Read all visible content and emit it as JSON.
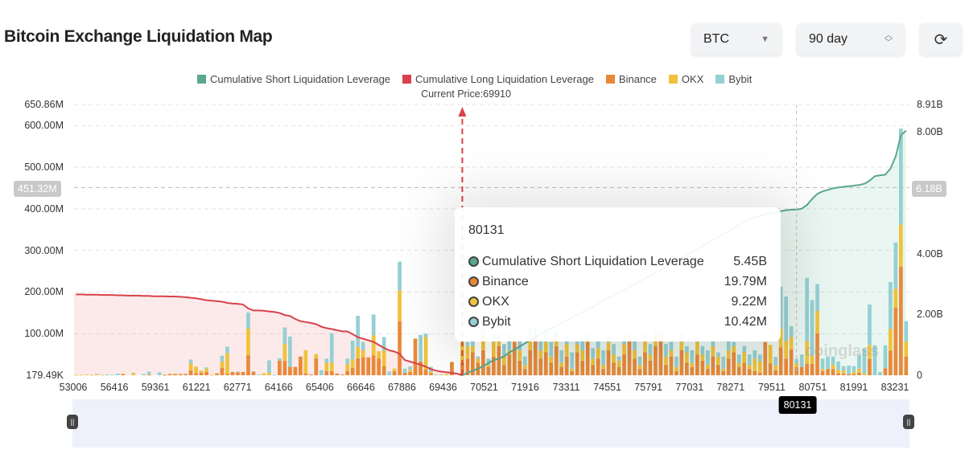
{
  "header": {
    "title": "Bitcoin Exchange Liquidation Map",
    "coin_select": "BTC",
    "period_select": "90 day",
    "refresh_icon": "refresh-icon"
  },
  "colors": {
    "short": "#5aa98a",
    "long": "#d9424a",
    "binance": "#e8893a",
    "okx": "#f0c23b",
    "bybit": "#95d0d3"
  },
  "chart_data": {
    "type": "bar",
    "stacked": true,
    "legend_position": "top",
    "legend": [
      "Cumulative Short Liquidation Leverage",
      "Cumulative Long Liquidation Leverage",
      "Binance",
      "OKX",
      "Bybit"
    ],
    "annotation": "Current Price:69910",
    "current_price": 69910,
    "grid": true,
    "x_tick_labels": [
      "53006",
      "56416",
      "59361",
      "61221",
      "62771",
      "64166",
      "65406",
      "66646",
      "67886",
      "69436",
      "70521",
      "71916",
      "73311",
      "74551",
      "75791",
      "77031",
      "78271",
      "79511",
      "80751",
      "81991",
      "83231"
    ],
    "y_left": {
      "ticks": [
        "650.86M",
        "600.00M",
        "500.00M",
        "400.00M",
        "300.00M",
        "200.00M",
        "100.00M",
        "179.49K"
      ],
      "tick_values_M": [
        650.86,
        600,
        500,
        400,
        300,
        200,
        100,
        0.17949
      ],
      "range_M": [
        0,
        650.86
      ],
      "crosshair_label": "451.32M",
      "crosshair_value_M": 451.32
    },
    "y_right": {
      "ticks": [
        "8.91B",
        "8.00B",
        "4.00B",
        "2.00B",
        "0"
      ],
      "tick_values_B": [
        8.91,
        8,
        4,
        2,
        0
      ],
      "range_B": [
        0,
        8.91
      ],
      "crosshair_label": "6.18B",
      "crosshair_value_B": 6.18
    },
    "bar_series_names": [
      "Binance",
      "OKX",
      "Bybit"
    ],
    "bars_M": [
      [
        0,
        1,
        0
      ],
      [
        0,
        1,
        0
      ],
      [
        0,
        2,
        0
      ],
      [
        0,
        1,
        0
      ],
      [
        0,
        2,
        1
      ],
      [
        0,
        1,
        0
      ],
      [
        0,
        0,
        2
      ],
      [
        0,
        0,
        1
      ],
      [
        0,
        0,
        4
      ],
      [
        3,
        1,
        0
      ],
      [
        0,
        0,
        0
      ],
      [
        0,
        5,
        1
      ],
      [
        0,
        0,
        0
      ],
      [
        0,
        0,
        3
      ],
      [
        1,
        1,
        7
      ],
      [
        0,
        0,
        0
      ],
      [
        0,
        0,
        7
      ],
      [
        1,
        1,
        0
      ],
      [
        3,
        0,
        0
      ],
      [
        3,
        1,
        0
      ],
      [
        3,
        0,
        0
      ],
      [
        3,
        0,
        0
      ],
      [
        12,
        16,
        10
      ],
      [
        5,
        16,
        0
      ],
      [
        6,
        5,
        0
      ],
      [
        8,
        8,
        3
      ],
      [
        0,
        1,
        0
      ],
      [
        4,
        1,
        0
      ],
      [
        18,
        15,
        14
      ],
      [
        3,
        50,
        16
      ],
      [
        8,
        0,
        0
      ],
      [
        7,
        0,
        2
      ],
      [
        8,
        0,
        0
      ],
      [
        48,
        64,
        39
      ],
      [
        8,
        0,
        2
      ],
      [
        0,
        0,
        2
      ],
      [
        0,
        5,
        0
      ],
      [
        0,
        6,
        30
      ],
      [
        0,
        0,
        1
      ],
      [
        35,
        0,
        6
      ],
      [
        35,
        40,
        40
      ],
      [
        20,
        0,
        73
      ],
      [
        20,
        0,
        0
      ],
      [
        45,
        0,
        0
      ],
      [
        4,
        56,
        0
      ],
      [
        2,
        0,
        0
      ],
      [
        41,
        10,
        0
      ],
      [
        0,
        0,
        12
      ],
      [
        10,
        20,
        10
      ],
      [
        10,
        20,
        71
      ],
      [
        4,
        0,
        0
      ],
      [
        2,
        0,
        0
      ],
      [
        10,
        16,
        14
      ],
      [
        18,
        20,
        45
      ],
      [
        41,
        27,
        75
      ],
      [
        43,
        17,
        20
      ],
      [
        43,
        0,
        0
      ],
      [
        48,
        48,
        50
      ],
      [
        40,
        18,
        0
      ],
      [
        22,
        37,
        33
      ],
      [
        0,
        0,
        9
      ],
      [
        10,
        6,
        0
      ],
      [
        130,
        74,
        69
      ],
      [
        6,
        0,
        10
      ],
      [
        8,
        5,
        8
      ],
      [
        88,
        0,
        0
      ],
      [
        33,
        0,
        64
      ],
      [
        14,
        78,
        8
      ],
      [
        5,
        3,
        12
      ],
      [
        0,
        0,
        2
      ],
      [
        0,
        2,
        0
      ],
      [
        0,
        3,
        0
      ],
      [
        32,
        0,
        0
      ],
      [
        0,
        0,
        0
      ],
      [
        30,
        50,
        0
      ],
      [
        40,
        30,
        10
      ],
      [
        55,
        15,
        20
      ],
      [
        30,
        10,
        5
      ],
      [
        60,
        40,
        30
      ],
      [
        20,
        5,
        15
      ],
      [
        45,
        35,
        20
      ],
      [
        70,
        20,
        10
      ],
      [
        25,
        20,
        30
      ],
      [
        50,
        10,
        40
      ],
      [
        80,
        10,
        5
      ],
      [
        35,
        25,
        25
      ],
      [
        15,
        10,
        20
      ],
      [
        60,
        30,
        20
      ],
      [
        90,
        15,
        10
      ],
      [
        40,
        20,
        25
      ],
      [
        55,
        25,
        30
      ],
      [
        30,
        15,
        35
      ],
      [
        70,
        20,
        15
      ],
      [
        20,
        10,
        30
      ],
      [
        45,
        30,
        20
      ],
      [
        10,
        5,
        40
      ],
      [
        55,
        20,
        10
      ],
      [
        35,
        25,
        30
      ],
      [
        80,
        10,
        10
      ],
      [
        25,
        15,
        25
      ],
      [
        40,
        25,
        20
      ],
      [
        15,
        10,
        35
      ],
      [
        60,
        20,
        15
      ],
      [
        30,
        20,
        25
      ],
      [
        20,
        15,
        10
      ],
      [
        50,
        25,
        20
      ],
      [
        85,
        10,
        5
      ],
      [
        40,
        20,
        30
      ],
      [
        15,
        10,
        20
      ],
      [
        55,
        30,
        15
      ],
      [
        35,
        15,
        25
      ],
      [
        70,
        25,
        10
      ],
      [
        90,
        10,
        5
      ],
      [
        25,
        20,
        30
      ],
      [
        45,
        15,
        20
      ],
      [
        10,
        10,
        25
      ],
      [
        60,
        20,
        20
      ],
      [
        30,
        25,
        15
      ],
      [
        20,
        10,
        30
      ],
      [
        50,
        30,
        10
      ],
      [
        35,
        15,
        20
      ],
      [
        15,
        10,
        35
      ],
      [
        45,
        25,
        15
      ],
      [
        25,
        20,
        10
      ],
      [
        10,
        5,
        30
      ],
      [
        40,
        20,
        25
      ],
      [
        55,
        15,
        10
      ],
      [
        20,
        10,
        20
      ],
      [
        30,
        25,
        15
      ],
      [
        15,
        10,
        25
      ],
      [
        10,
        30,
        20
      ],
      [
        6,
        27,
        17
      ],
      [
        80,
        0,
        0
      ],
      [
        28,
        45,
        0
      ],
      [
        12,
        12,
        20
      ],
      [
        67,
        45,
        101
      ],
      [
        40,
        42,
        107
      ],
      [
        62,
        30,
        26
      ],
      [
        19.79,
        9.22,
        10.42
      ],
      [
        20,
        0,
        30
      ],
      [
        27,
        55,
        152
      ],
      [
        27,
        20,
        134
      ],
      [
        101,
        54,
        64
      ],
      [
        10,
        5,
        25
      ],
      [
        15,
        0,
        30
      ],
      [
        15,
        10,
        20
      ],
      [
        5,
        8,
        20
      ],
      [
        4,
        8,
        10
      ],
      [
        3,
        0,
        20
      ],
      [
        3,
        5,
        14
      ],
      [
        6,
        10,
        32
      ],
      [
        0,
        4,
        60
      ],
      [
        40,
        33,
        97
      ],
      [
        0,
        0,
        72
      ],
      [
        0,
        0,
        8
      ],
      [
        17,
        0,
        55
      ],
      [
        59,
        52,
        113
      ],
      [
        163,
        45,
        111
      ],
      [
        261,
        101,
        231
      ],
      [
        45,
        36,
        49
      ]
    ],
    "long_cumulative_B": [
      2.66,
      2.66,
      2.65,
      2.65,
      2.65,
      2.64,
      2.64,
      2.64,
      2.63,
      2.63,
      2.62,
      2.62,
      2.62,
      2.61,
      2.61,
      2.6,
      2.6,
      2.6,
      2.59,
      2.59,
      2.58,
      2.57,
      2.55,
      2.53,
      2.5,
      2.47,
      2.45,
      2.44,
      2.42,
      2.38,
      2.36,
      2.35,
      2.33,
      2.2,
      2.13,
      2.13,
      2.12,
      2.1,
      2.08,
      2.05,
      1.98,
      1.95,
      1.85,
      1.78,
      1.75,
      1.72,
      1.68,
      1.6,
      1.55,
      1.52,
      1.48,
      1.45,
      1.44,
      1.35,
      1.25,
      1.2,
      1.15,
      1.1,
      1.0,
      0.9,
      0.82,
      0.78,
      0.7,
      0.5,
      0.45,
      0.4,
      0.35,
      0.28,
      0.2,
      0.15,
      0.12,
      0.1,
      0.08,
      0.05,
      0.0
    ],
    "short_cumulative_start_index": 74,
    "short_cumulative_B": [
      0,
      0.08,
      0.15,
      0.22,
      0.3,
      0.4,
      0.5,
      0.55,
      0.62,
      0.75,
      0.85,
      0.95,
      1.05,
      1.15,
      1.25,
      1.35,
      1.45,
      1.55,
      1.62,
      1.72,
      1.8,
      1.9,
      2.0,
      2.08,
      2.17,
      2.25,
      2.35,
      2.45,
      2.55,
      2.62,
      2.72,
      2.8,
      2.9,
      3.0,
      3.1,
      3.18,
      3.28,
      3.38,
      3.47,
      3.55,
      3.65,
      3.75,
      3.85,
      3.95,
      4.05,
      4.15,
      4.25,
      4.35,
      4.45,
      4.55,
      4.65,
      4.75,
      4.85,
      4.95,
      5.05,
      5.12,
      5.2,
      5.25,
      5.3,
      5.33,
      5.36,
      5.4,
      5.43,
      5.45,
      5.45,
      5.48,
      5.6,
      5.8,
      5.97,
      6.05,
      6.1,
      6.15,
      6.18,
      6.2,
      6.22,
      6.24,
      6.26,
      6.3,
      6.4,
      6.55,
      6.58,
      6.6,
      6.8,
      7.2,
      7.9,
      8.05
    ],
    "hover_index": 138,
    "hover_label": "80131"
  },
  "tooltip": {
    "title": "80131",
    "rows": [
      {
        "label": "Cumulative Short Liquidation Leverage",
        "value": "5.45B"
      },
      {
        "label": "Binance",
        "value": "19.79M"
      },
      {
        "label": "OKX",
        "value": "9.22M"
      },
      {
        "label": "Bybit",
        "value": "10.42M"
      }
    ]
  },
  "watermark": "coinglass",
  "data_zoom": {
    "start_percent": 0,
    "end_percent": 100
  }
}
